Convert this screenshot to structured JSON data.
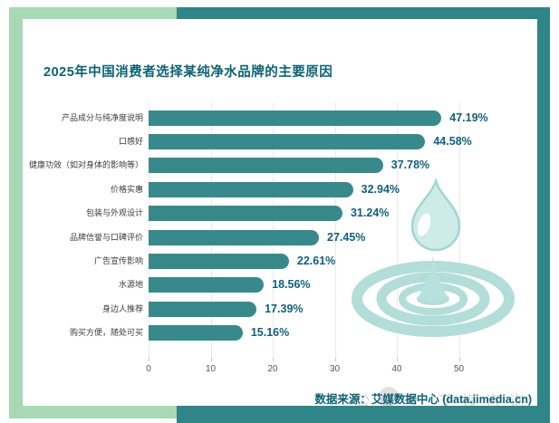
{
  "frame": {
    "light_green": "#a8d8b4",
    "teal": "#2f8588"
  },
  "page": {
    "source_label": "数据来源：艾媒数据中心 (data.iimedia.cn)",
    "watermark": "公众号 艾媒咨询"
  },
  "chart_data": {
    "type": "bar",
    "orientation": "horizontal",
    "title": "2025年中国消费者选择某纯净水品牌的主要原因",
    "categories": [
      "产品成分与纯净度说明",
      "口感好",
      "健康功效（如对身体的影响等）",
      "价格实惠",
      "包装与外观设计",
      "品牌信誉与口碑评价",
      "广告宣传影响",
      "水源地",
      "身边人推荐",
      "购买方便，随处可买"
    ],
    "values": [
      47.19,
      44.58,
      37.78,
      32.94,
      31.24,
      27.45,
      22.61,
      18.56,
      17.39,
      15.16
    ],
    "value_labels": [
      "47.19%",
      "44.58%",
      "37.78%",
      "32.94%",
      "31.24%",
      "27.45%",
      "22.61%",
      "18.56%",
      "17.39%",
      "15.16%"
    ],
    "xlabel": "",
    "ylabel": "",
    "xlim": [
      0,
      55
    ],
    "xticks": [
      0,
      10,
      20,
      30,
      40,
      50
    ],
    "grid": "vertical-gridlines",
    "legend": "none",
    "bar_color": "#38898b",
    "value_label_color": "#135e7d",
    "source": "数据来源：艾媒数据中心 (data.iimedia.cn)",
    "watermark": "公众号 艾媒咨询",
    "decoration": "water-drop-ripple-illustration"
  }
}
